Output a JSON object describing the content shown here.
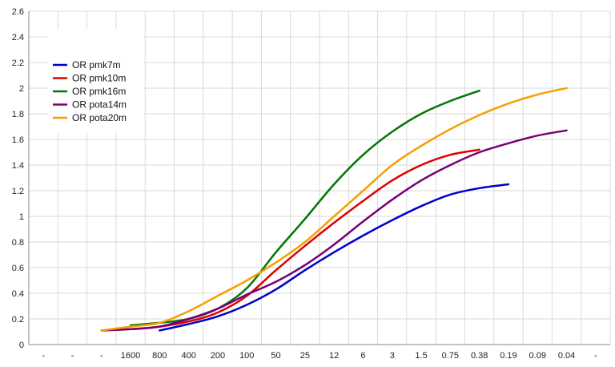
{
  "chart_data": {
    "type": "line",
    "title": "",
    "xlabel": "",
    "ylabel": "",
    "x_tick_labels": [
      "-",
      "-",
      "-",
      "1600",
      "800",
      "400",
      "200",
      "100",
      "50",
      "25",
      "12",
      "6",
      "3",
      "1.5",
      "0.75",
      "0.38",
      "0.19",
      "0.09",
      "0.04",
      "-"
    ],
    "ylim": [
      0,
      2.6
    ],
    "y_ticks": [
      0,
      0.2,
      0.4,
      0.6,
      0.8,
      1,
      1.2,
      1.4,
      1.6,
      1.8,
      2,
      2.2,
      2.4,
      2.6
    ],
    "y_tick_labels": [
      "0",
      "0.2",
      "0.4",
      "0.6",
      "0.8",
      "1",
      "1.2",
      "1.4",
      "1.6",
      "1.8",
      "2",
      "2.2",
      "2.4",
      "2.6"
    ],
    "grid": true,
    "legend_position": "top-left",
    "series": [
      {
        "name": "OR pmk7m",
        "color": "#0000cc",
        "x_labels": [
          "800",
          "400",
          "200",
          "100",
          "50",
          "25",
          "12",
          "6",
          "3",
          "1.5",
          "0.75",
          "0.38",
          "0.19"
        ],
        "values": [
          0.11,
          0.16,
          0.22,
          0.31,
          0.43,
          0.58,
          0.72,
          0.85,
          0.97,
          1.08,
          1.17,
          1.22,
          1.25
        ]
      },
      {
        "name": "OR pmk10m",
        "color": "#dd0000",
        "x_labels": [
          "-",
          "1600",
          "800",
          "400",
          "200",
          "100",
          "50",
          "25",
          "12",
          "6",
          "3",
          "1.5",
          "0.75",
          "0.38"
        ],
        "values": [
          0.11,
          0.12,
          0.14,
          0.18,
          0.25,
          0.38,
          0.58,
          0.77,
          0.95,
          1.12,
          1.28,
          1.4,
          1.48,
          1.52
        ]
      },
      {
        "name": "OR pmk16m",
        "color": "#007700",
        "x_labels": [
          "1600",
          "800",
          "400",
          "200",
          "100",
          "50",
          "25",
          "12",
          "6",
          "3",
          "1.5",
          "0.75",
          "0.38"
        ],
        "values": [
          0.15,
          0.17,
          0.2,
          0.28,
          0.44,
          0.72,
          0.98,
          1.25,
          1.48,
          1.66,
          1.8,
          1.9,
          1.98
        ]
      },
      {
        "name": "OR pota14m",
        "color": "#770077",
        "x_labels": [
          "-",
          "1600",
          "800",
          "400",
          "200",
          "100",
          "50",
          "25",
          "12",
          "6",
          "3",
          "1.5",
          "0.75",
          "0.38",
          "0.19",
          "0.09",
          "0.04"
        ],
        "values": [
          0.11,
          0.12,
          0.14,
          0.2,
          0.28,
          0.39,
          0.49,
          0.62,
          0.78,
          0.96,
          1.13,
          1.28,
          1.4,
          1.5,
          1.57,
          1.63,
          1.67
        ]
      },
      {
        "name": "OR pota20m",
        "color": "#f5a000",
        "x_labels": [
          "-",
          "1600",
          "800",
          "400",
          "200",
          "100",
          "50",
          "25",
          "12",
          "6",
          "3",
          "1.5",
          "0.75",
          "0.38",
          "0.19",
          "0.09",
          "0.04"
        ],
        "values": [
          0.11,
          0.14,
          0.17,
          0.26,
          0.38,
          0.5,
          0.64,
          0.8,
          1.0,
          1.2,
          1.4,
          1.55,
          1.68,
          1.79,
          1.88,
          1.95,
          2.0
        ]
      }
    ]
  }
}
